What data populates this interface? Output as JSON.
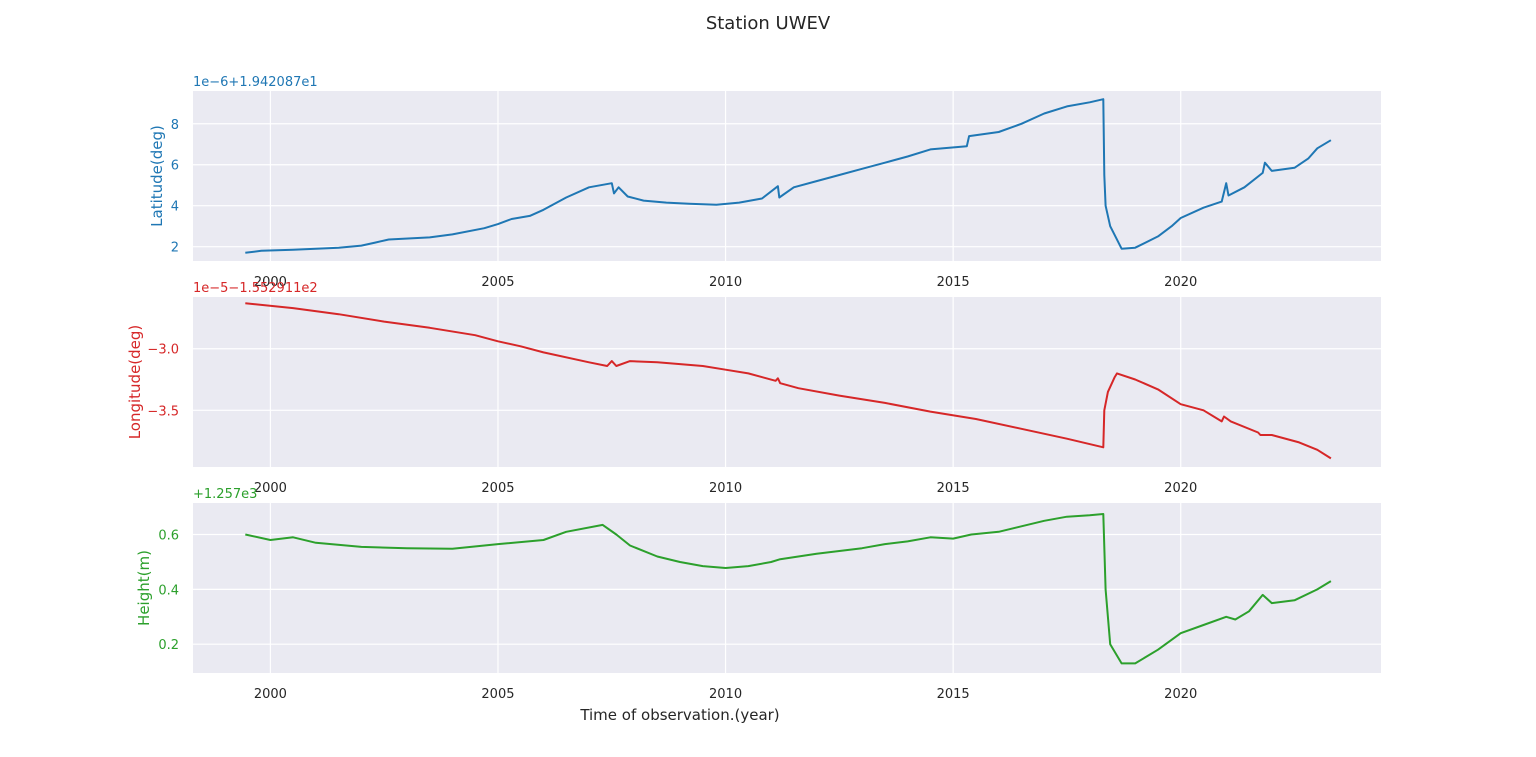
{
  "figure": {
    "title": "Station UWEV"
  },
  "chart_data": [
    {
      "type": "line",
      "name": "latitude",
      "ylabel": "Latitude(deg)",
      "offset_label": "1e−6+1.942087e1",
      "xlabel": "",
      "color": "#1f77b4",
      "background": "#eaeaf2",
      "grid": true,
      "xlim": [
        1998.3,
        2024.4
      ],
      "ylim": [
        1.3,
        9.6
      ],
      "xticks": [
        2000,
        2005,
        2010,
        2015,
        2020
      ],
      "xtick_labels": [
        "2000",
        "2005",
        "2010",
        "2015",
        "2020"
      ],
      "yticks": [
        2,
        4,
        6,
        8
      ],
      "ytick_labels": [
        "2",
        "4",
        "6",
        "8"
      ],
      "series": [
        {
          "x": [
            1999.45,
            1999.8,
            2000.5,
            2001.5,
            2002.0,
            2002.3,
            2002.6,
            2003.5,
            2004.0,
            2004.7,
            2005.0,
            2005.3,
            2005.7,
            2006.0,
            2006.5,
            2007.0,
            2007.5,
            2007.55,
            2007.65,
            2007.85,
            2008.2,
            2008.7,
            2009.2,
            2009.8,
            2010.3,
            2010.8,
            2011.15,
            2011.18,
            2011.5,
            2012.0,
            2012.5,
            2013.0,
            2013.5,
            2014.0,
            2014.5,
            2015.3,
            2015.35,
            2016.0,
            2016.5,
            2017.0,
            2017.5,
            2018.0,
            2018.3,
            2018.32,
            2018.35,
            2018.45,
            2018.7,
            2019.0,
            2019.5,
            2019.8,
            2020.0,
            2020.5,
            2020.9,
            2021.0,
            2021.05,
            2021.4,
            2021.8,
            2021.85,
            2022.0,
            2022.5,
            2022.8,
            2023.0,
            2023.3
          ],
          "y": [
            1.7,
            1.8,
            1.85,
            1.95,
            2.05,
            2.2,
            2.35,
            2.45,
            2.6,
            2.9,
            3.1,
            3.35,
            3.5,
            3.8,
            4.4,
            4.9,
            5.1,
            4.6,
            4.9,
            4.45,
            4.25,
            4.15,
            4.1,
            4.05,
            4.15,
            4.35,
            4.95,
            4.4,
            4.9,
            5.2,
            5.5,
            5.8,
            6.1,
            6.4,
            6.75,
            6.9,
            7.4,
            7.6,
            8.0,
            8.5,
            8.85,
            9.05,
            9.2,
            5.5,
            4.0,
            3.0,
            1.9,
            1.95,
            2.5,
            3.0,
            3.4,
            3.9,
            4.2,
            5.1,
            4.5,
            4.9,
            5.6,
            6.1,
            5.7,
            5.85,
            6.3,
            6.8,
            7.2
          ]
        }
      ]
    },
    {
      "type": "line",
      "name": "longitude",
      "ylabel": "Longitude(deg)",
      "offset_label": "1e−5−1.552911e2",
      "xlabel": "",
      "color": "#d62728",
      "background": "#eaeaf2",
      "grid": true,
      "xlim": [
        1998.3,
        2024.4
      ],
      "ylim": [
        -3.96,
        -2.58
      ],
      "xticks": [
        2000,
        2005,
        2010,
        2015,
        2020
      ],
      "xtick_labels": [
        "2000",
        "2005",
        "2010",
        "2015",
        "2020"
      ],
      "yticks": [
        -3.0,
        -3.5
      ],
      "ytick_labels": [
        "−3.0",
        "−3.5"
      ],
      "series": [
        {
          "x": [
            1999.45,
            2000.5,
            2001.5,
            2002.5,
            2003.5,
            2004.5,
            2005.0,
            2005.5,
            2006.0,
            2007.0,
            2007.4,
            2007.5,
            2007.6,
            2007.9,
            2008.5,
            2009.5,
            2010.0,
            2010.5,
            2011.1,
            2011.15,
            2011.2,
            2011.6,
            2012.5,
            2013.5,
            2014.5,
            2015.5,
            2016.5,
            2017.5,
            2018.3,
            2018.32,
            2018.4,
            2018.55,
            2018.6,
            2019.0,
            2019.5,
            2020.0,
            2020.5,
            2020.9,
            2020.95,
            2021.1,
            2021.7,
            2021.75,
            2022.0,
            2022.6,
            2023.0,
            2023.3
          ],
          "y": [
            -2.63,
            -2.67,
            -2.72,
            -2.78,
            -2.83,
            -2.89,
            -2.94,
            -2.98,
            -3.03,
            -3.11,
            -3.14,
            -3.1,
            -3.14,
            -3.1,
            -3.11,
            -3.14,
            -3.17,
            -3.2,
            -3.26,
            -3.24,
            -3.28,
            -3.32,
            -3.38,
            -3.44,
            -3.51,
            -3.57,
            -3.65,
            -3.73,
            -3.8,
            -3.5,
            -3.35,
            -3.23,
            -3.2,
            -3.25,
            -3.33,
            -3.45,
            -3.5,
            -3.59,
            -3.55,
            -3.59,
            -3.68,
            -3.7,
            -3.7,
            -3.76,
            -3.82,
            -3.89
          ]
        }
      ]
    },
    {
      "type": "line",
      "name": "height",
      "ylabel": "Height(m)",
      "offset_label": "+1.257e3",
      "xlabel": "Time of observation.(year)",
      "color": "#2ca02c",
      "background": "#eaeaf2",
      "grid": true,
      "xlim": [
        1998.3,
        2024.4
      ],
      "ylim": [
        0.095,
        0.715
      ],
      "xticks": [
        2000,
        2005,
        2010,
        2015,
        2020
      ],
      "xtick_labels": [
        "2000",
        "2005",
        "2010",
        "2015",
        "2020"
      ],
      "yticks": [
        0.6,
        0.4,
        0.2
      ],
      "ytick_labels": [
        "0.6",
        "0.4",
        "0.2"
      ],
      "series": [
        {
          "x": [
            1999.45,
            2000.0,
            2000.5,
            2001.0,
            2002.0,
            2003.0,
            2004.0,
            2005.0,
            2006.0,
            2006.5,
            2007.3,
            2007.6,
            2007.9,
            2008.5,
            2009.0,
            2009.5,
            2010.0,
            2010.5,
            2011.0,
            2011.2,
            2012.0,
            2013.0,
            2013.5,
            2014.0,
            2014.5,
            2015.0,
            2015.4,
            2016.0,
            2016.5,
            2017.0,
            2017.5,
            2018.0,
            2018.3,
            2018.35,
            2018.45,
            2018.7,
            2019.0,
            2019.5,
            2020.0,
            2020.5,
            2021.0,
            2021.2,
            2021.5,
            2021.8,
            2022.0,
            2022.5,
            2023.0,
            2023.3
          ],
          "y": [
            0.6,
            0.58,
            0.59,
            0.57,
            0.555,
            0.55,
            0.548,
            0.565,
            0.58,
            0.61,
            0.635,
            0.6,
            0.56,
            0.52,
            0.5,
            0.485,
            0.478,
            0.485,
            0.5,
            0.51,
            0.53,
            0.55,
            0.565,
            0.575,
            0.59,
            0.585,
            0.6,
            0.61,
            0.63,
            0.65,
            0.665,
            0.67,
            0.675,
            0.4,
            0.2,
            0.13,
            0.13,
            0.18,
            0.24,
            0.27,
            0.3,
            0.29,
            0.32,
            0.38,
            0.35,
            0.36,
            0.4,
            0.43
          ]
        }
      ]
    }
  ]
}
